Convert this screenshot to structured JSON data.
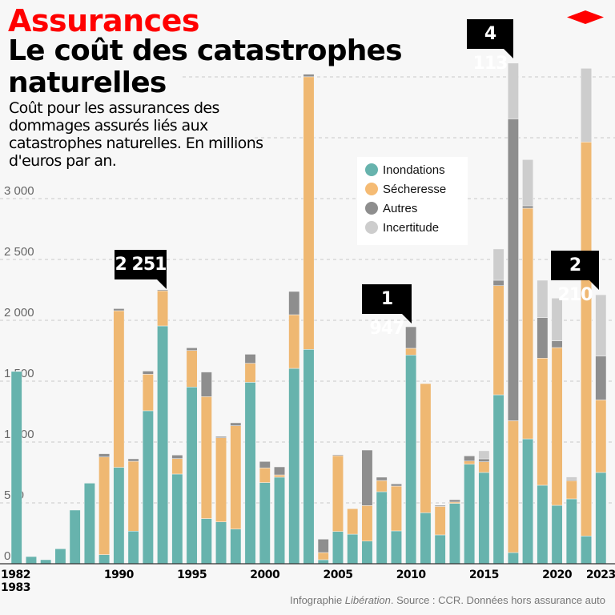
{
  "header": {
    "kicker": "Assurances",
    "title": "Le coût des catastrophes naturelles",
    "subtitle": "Coût pour les assurances des dommages assurés liés aux catastrophes naturelles. En millions d'euros par an."
  },
  "footer": {
    "prefix": "Infographie ",
    "brand": "Libération",
    "suffix": ". Source : CCR. Données hors assurance auto"
  },
  "logo": {
    "color": "#ff0000",
    "shape": "red-diamond-logo"
  },
  "chart_data": {
    "type": "bar",
    "stacked": true,
    "title": "",
    "xlabel": "",
    "ylabel": "",
    "ylim": [
      0,
      4113
    ],
    "grid": true,
    "legend_placement": "top-right",
    "yticks": [
      0,
      500,
      1000,
      1500,
      2000,
      2500,
      3000,
      3500,
      4000
    ],
    "ytick_labels": [
      "0",
      "500",
      "1 000",
      "1 500",
      "2 000",
      "2 500",
      "3 000",
      "",
      ""
    ],
    "categories": [
      "1982-1983",
      "1984",
      "1985",
      "1986",
      "1987",
      "1988",
      "1989",
      "1990",
      "1991",
      "1992",
      "1993",
      "1994",
      "1995",
      "1996",
      "1997",
      "1998",
      "1999",
      "2000",
      "2001",
      "2002",
      "2003",
      "2004",
      "2005",
      "2006",
      "2007",
      "2008",
      "2009",
      "2010",
      "2011",
      "2012",
      "2013",
      "2014",
      "2015",
      "2016",
      "2017",
      "2018",
      "2019",
      "2020",
      "2021",
      "2022",
      "2023"
    ],
    "xtick_labels": [
      {
        "category": "1982-1983",
        "label": "1982\n1983"
      },
      {
        "category": "1990",
        "label": "1990"
      },
      {
        "category": "1995",
        "label": "1995"
      },
      {
        "category": "2000",
        "label": "2000"
      },
      {
        "category": "2005",
        "label": "2005"
      },
      {
        "category": "2010",
        "label": "2010"
      },
      {
        "category": "2015",
        "label": "2015"
      },
      {
        "category": "2020",
        "label": "2020"
      },
      {
        "category": "2023",
        "label": "2023"
      }
    ],
    "series": [
      {
        "name": "Inondations",
        "color": "#67b3ad",
        "values": [
          1580,
          59,
          33,
          123,
          441,
          662,
          75,
          792,
          268,
          1257,
          1954,
          737,
          1452,
          371,
          344,
          285,
          1491,
          667,
          711,
          1605,
          1761,
          33,
          265,
          243,
          186,
          592,
          270,
          1715,
          419,
          237,
          496,
          818,
          750,
          1388,
          92,
          1026,
          645,
          480,
          533,
          228,
          750
        ]
      },
      {
        "name": "Sécheresse",
        "color": "#efb872",
        "values": [
          0,
          0,
          0,
          0,
          0,
          0,
          802,
          1287,
          574,
          300,
          289,
          127,
          300,
          1002,
          691,
          849,
          156,
          120,
          19,
          441,
          2240,
          59,
          623,
          209,
          292,
          92,
          368,
          55,
          1061,
          234,
          11,
          26,
          88,
          897,
          1083,
          1895,
          1044,
          1296,
          149,
          3237,
          596
        ]
      },
      {
        "name": "Autres",
        "color": "#8e8e8e",
        "values": [
          0,
          0,
          0,
          0,
          0,
          0,
          27,
          17,
          20,
          26,
          8,
          29,
          22,
          202,
          11,
          24,
          74,
          53,
          66,
          191,
          21,
          110,
          7,
          0,
          456,
          27,
          18,
          177,
          0,
          9,
          19,
          42,
          24,
          44,
          2480,
          20,
          333,
          55,
          9,
          0,
          360
        ]
      },
      {
        "name": "Incertitude",
        "color": "#cdcdcd",
        "values": [
          0,
          0,
          0,
          0,
          0,
          0,
          0,
          0,
          0,
          0,
          0,
          0,
          0,
          0,
          0,
          0,
          0,
          0,
          0,
          0,
          0,
          0,
          0,
          0,
          0,
          0,
          0,
          0,
          0,
          0,
          0,
          0,
          66,
          257,
          458,
          379,
          307,
          351,
          22,
          605,
          504
        ]
      }
    ],
    "annotations": [
      {
        "category": "1993",
        "label": "2 251"
      },
      {
        "category": "2010",
        "label": "1 947"
      },
      {
        "category": "2017",
        "label": "4 113"
      },
      {
        "category": "2023",
        "label": "2 210"
      }
    ]
  }
}
